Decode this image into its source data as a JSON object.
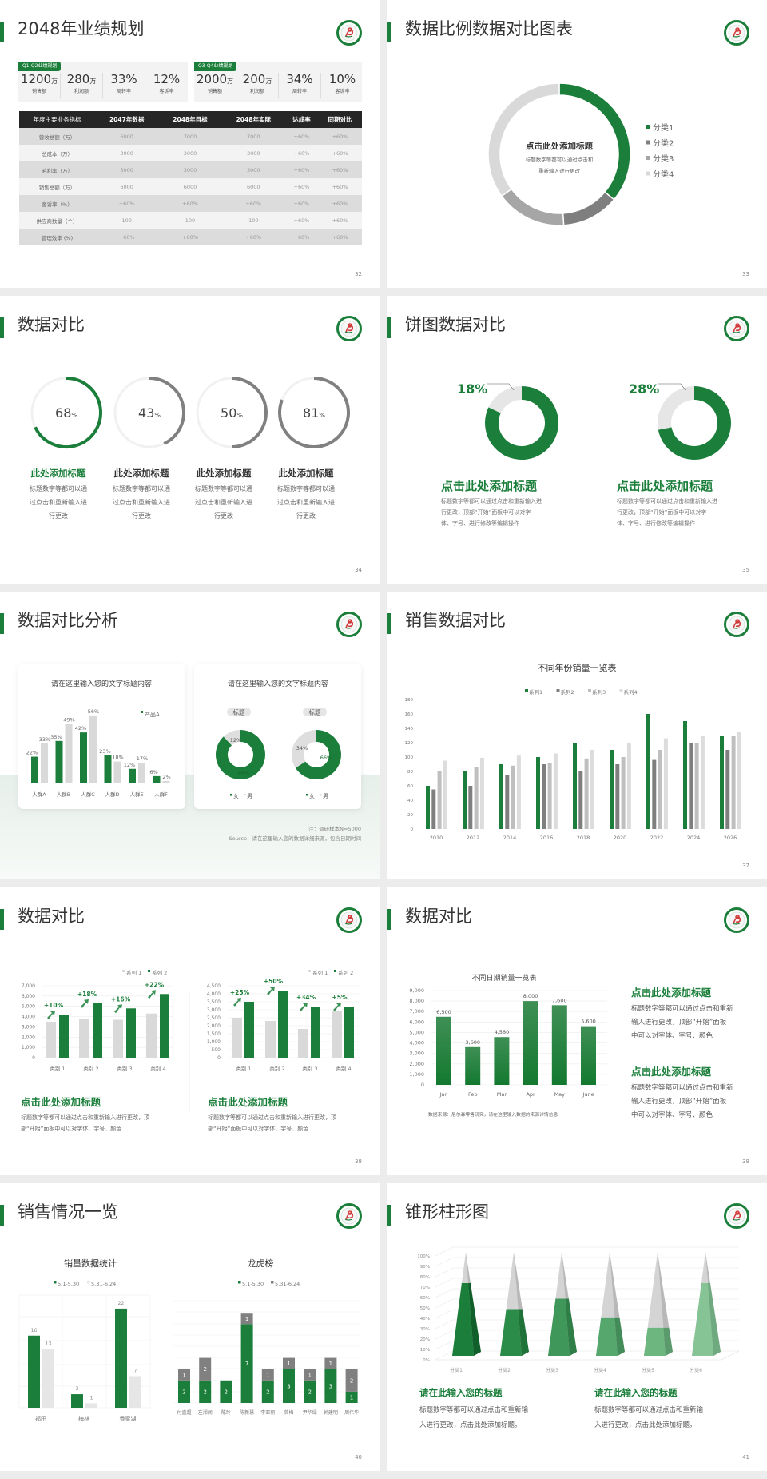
{
  "colors": {
    "green": "#1b7f3b",
    "dark_gray": "#7f7f7f",
    "mid_gray": "#a6a6a6",
    "light_gray": "#d9d9d9",
    "page_bg": "#ececec"
  },
  "logo_icon": "school-emblem-icon",
  "slides": {
    "s32": {
      "title": "2048年业绩规划",
      "page": "32",
      "panels": [
        {
          "badge": "Q1-Q2业绩规划",
          "stats": [
            {
              "value": "1200",
              "unit": "万",
              "label": "销售额"
            },
            {
              "value": "280",
              "unit": "万",
              "label": "利润额"
            },
            {
              "value": "33%",
              "unit": "",
              "label": "周转率"
            },
            {
              "value": "12%",
              "unit": "",
              "label": "客诉率"
            }
          ]
        },
        {
          "badge": "Q3-Q4业绩规划",
          "stats": [
            {
              "value": "2000",
              "unit": "万",
              "label": "销售额"
            },
            {
              "value": "200",
              "unit": "万",
              "label": "利润额"
            },
            {
              "value": "34%",
              "unit": "",
              "label": "周转率"
            },
            {
              "value": "10%",
              "unit": "",
              "label": "客诉率"
            }
          ]
        }
      ],
      "table": {
        "headers": [
          "年度主要业务指标",
          "2047年数据",
          "2048年目标",
          "2048年实际",
          "达成率",
          "同期对比"
        ],
        "rows": [
          [
            "营收总额（万）",
            "6000",
            "7000",
            "7000",
            "+60%",
            "+60%"
          ],
          [
            "总成本（万）",
            "3000",
            "3000",
            "3000",
            "+60%",
            "+60%"
          ],
          [
            "毛利率（万）",
            "3000",
            "3000",
            "3000",
            "+60%",
            "+60%"
          ],
          [
            "销售总额（万）",
            "6000",
            "6000",
            "6000",
            "+60%",
            "+60%"
          ],
          [
            "客诉率（%）",
            "+60%",
            "+60%",
            "+60%",
            "+60%",
            "+60%"
          ],
          [
            "供应商数量（个）",
            "100",
            "100",
            "100",
            "+60%",
            "+60%"
          ],
          [
            "管理效率 (%)",
            "+60%",
            "+60%",
            "+60%",
            "+60%",
            "+60%"
          ]
        ]
      }
    },
    "s33": {
      "title": "数据比例数据对比图表",
      "page": "33",
      "center_title": "点击此处添加标题",
      "center_desc": [
        "标题数字等都可以通过点击和",
        "重新输入进行更改"
      ]
    },
    "s34": {
      "title": "数据对比",
      "page": "34",
      "items": [
        {
          "title": "此处添加标题",
          "desc": [
            "标题数字等都可以通",
            "过点击和重新输入进",
            "行更改"
          ]
        },
        {
          "title": "此处添加标题",
          "desc": [
            "标题数字等都可以通",
            "过点击和重新输入进",
            "行更改"
          ]
        },
        {
          "title": "此处添加标题",
          "desc": [
            "标题数字等都可以通",
            "过点击和重新输入进",
            "行更改"
          ]
        },
        {
          "title": "此处添加标题",
          "desc": [
            "标题数字等都可以通",
            "过点击和重新输入进",
            "行更改"
          ]
        }
      ]
    },
    "s35": {
      "title": "饼图数据对比",
      "page": "35",
      "items": [
        {
          "title": "点击此处添加标题",
          "desc": [
            "标题数字等都可以通过点击和重新输入进",
            "行更改，顶部“开始”面板中可以对字",
            "体、字号、进行修改等编辑操作"
          ]
        },
        {
          "title": "点击此处添加标题",
          "desc": [
            "标题数字等都可以通过点击和重新输入进",
            "行更改，顶部“开始”面板中可以对字",
            "体、字号、进行修改等编辑操作"
          ]
        }
      ]
    },
    "s36": {
      "title": "数据对比分析",
      "page": "36",
      "card_titles": [
        "请在这里输入您的文字标题内容",
        "请在这里输入您的文字标题内容"
      ],
      "note": "注：调研样本N=5000",
      "source": "Source：请在这里输入您的数据详细来源，包含日期时间"
    },
    "s37": {
      "title": "销售数据对比",
      "page": "37"
    },
    "s38": {
      "title": "数据对比",
      "page": "38",
      "items": [
        {
          "title": "点击此处添加标题",
          "desc": [
            "标题数字等都可以通过点击和重新输入进行更改，顶",
            "部“开始”面板中可以对字体、字号、颜色"
          ]
        },
        {
          "title": "点击此处添加标题",
          "desc": [
            "标题数字等都可以通过点击和重新输入进行更改，顶",
            "部“开始”面板中可以对字体、字号、颜色"
          ]
        }
      ]
    },
    "s39": {
      "title": "数据对比",
      "page": "39",
      "source": "数据来源：尼尔森零售研究，请在这里输入数据的来源详情信息",
      "items": [
        {
          "title": "点击此处添加标题",
          "desc": [
            "标题数字等都可以通过点击和重新",
            "输入进行更改，顶部“开始”面板",
            "中可以对字体、字号、颜色"
          ]
        },
        {
          "title": "点击此处添加标题",
          "desc": [
            "标题数字等都可以通过点击和重新",
            "输入进行更改，顶部“开始”面板",
            "中可以对字体、字号、颜色"
          ]
        }
      ]
    },
    "s40": {
      "title": "销售情况一览",
      "page": "40"
    },
    "s41": {
      "title": "锥形柱形图",
      "page": "41",
      "items": [
        {
          "title": "请在此输入您的标题",
          "desc": [
            "标题数字等都可以通过点击和重新输",
            "入进行更改，点击此处添加标题。"
          ]
        },
        {
          "title": "请在此输入您的标题",
          "desc": [
            "标题数字等都可以通过点击和重新输",
            "入进行更改，点击此处添加标题。"
          ]
        }
      ]
    }
  },
  "chart_data": [
    {
      "type": "pie",
      "variant": "donut",
      "categories": [
        "分类1",
        "分类2",
        "分类3",
        "分类4"
      ],
      "values": [
        36,
        13,
        16,
        35
      ],
      "legend": "right"
    },
    {
      "type": "pie",
      "variant": "progress-ring",
      "values": [
        68,
        43,
        50,
        81
      ],
      "unit": "%"
    },
    {
      "type": "pie",
      "variant": "donut",
      "values": [
        18,
        28
      ],
      "labels": [
        "18%",
        "28%"
      ]
    },
    {
      "type": "bar",
      "title": "请在这里输入您的文字标题内容",
      "categories": [
        "人群A",
        "人群B",
        "人群C",
        "人群D",
        "人群E",
        "人群F"
      ],
      "series": [
        {
          "name": "产品A",
          "values": [
            22,
            35,
            42,
            23,
            12,
            6
          ],
          "labels": [
            "22%",
            "35%",
            "42%",
            "23%",
            "12%",
            "6%"
          ]
        },
        {
          "values": [
            33,
            49,
            56,
            18,
            17,
            2
          ],
          "labels": [
            "33%",
            "49%",
            "56%",
            "18%",
            "17%",
            "2%"
          ]
        }
      ],
      "legend": "top-right"
    },
    {
      "type": "pie",
      "variant": "donut",
      "legend": [
        "女",
        "男"
      ],
      "charts": [
        {
          "label": "标题",
          "values": [
            88,
            12
          ],
          "labels": [
            "88%",
            "12%"
          ]
        },
        {
          "label": "标题",
          "values": [
            66,
            34
          ],
          "labels": [
            "66%",
            "34%"
          ]
        }
      ]
    },
    {
      "type": "bar",
      "title": "不同年份销量一览表",
      "categories": [
        "2010",
        "2012",
        "2014",
        "2016",
        "2018",
        "2020",
        "2022",
        "2024",
        "2026"
      ],
      "ylim": [
        0,
        180
      ],
      "yticks": [
        "0",
        "20",
        "40",
        "60",
        "80",
        "100",
        "120",
        "140",
        "160",
        "180"
      ],
      "series": [
        {
          "name": "系列1",
          "values": [
            60,
            80,
            90,
            100,
            120,
            110,
            160,
            150,
            130
          ]
        },
        {
          "name": "系列2",
          "values": [
            55,
            60,
            75,
            90,
            80,
            90,
            96,
            120,
            110
          ]
        },
        {
          "name": "系列3",
          "values": [
            80,
            86,
            88,
            92,
            98,
            100,
            110,
            120,
            130
          ]
        },
        {
          "name": "系列4",
          "values": [
            95,
            99,
            102,
            105,
            110,
            120,
            126,
            130,
            135
          ]
        }
      ],
      "legend": "top"
    },
    {
      "type": "bar",
      "categories": [
        "类别 1",
        "类别 2",
        "类别 3",
        "类别 4"
      ],
      "ylim": [
        0,
        7000
      ],
      "yticks": [
        "0",
        "1,000",
        "2,000",
        "3,000",
        "4,000",
        "5,000",
        "6,000",
        "7,000"
      ],
      "series": [
        {
          "name": "系列 1",
          "values": [
            3500,
            3800,
            3700,
            4300
          ]
        },
        {
          "name": "系列 2",
          "values": [
            4200,
            5300,
            4800,
            6200
          ]
        }
      ],
      "annotations": [
        "+10%",
        "+18%",
        "+16%",
        "+22%"
      ],
      "legend": "top-right"
    },
    {
      "type": "bar",
      "categories": [
        "类别 1",
        "类别 2",
        "类别 3",
        "类别 4"
      ],
      "ylim": [
        0,
        4500
      ],
      "yticks": [
        "0",
        "500",
        "1,000",
        "1,500",
        "2,000",
        "2,500",
        "3,000",
        "3,500",
        "4,000",
        "4,500"
      ],
      "series": [
        {
          "name": "系列 1",
          "values": [
            2500,
            2300,
            1800,
            2900
          ]
        },
        {
          "name": "系列 2",
          "values": [
            3500,
            4200,
            3200,
            3200
          ]
        }
      ],
      "annotations": [
        "+25%",
        "+50%",
        "+34%",
        "+5%"
      ],
      "legend": "top-right"
    },
    {
      "type": "bar",
      "title": "不同日期销量一览表",
      "categories": [
        "Jan",
        "Feb",
        "Mar",
        "Apr",
        "May",
        "June"
      ],
      "values": [
        6500,
        3600,
        4560,
        8000,
        7600,
        5600
      ],
      "labels": [
        "6,500",
        "3,600",
        "4,560",
        "8,000",
        "7,600",
        "5,600"
      ],
      "ylim": [
        0,
        9000
      ],
      "yticks": [
        "0",
        "1,000",
        "2,000",
        "3,000",
        "4,000",
        "5,000",
        "6,000",
        "7,000",
        "8,000",
        "9,000"
      ]
    },
    {
      "type": "bar",
      "title": "销量数据统计",
      "categories": [
        "福田",
        "梅林",
        "香蜜湖"
      ],
      "series": [
        {
          "name": "5.1-5.30",
          "values": [
            16,
            3,
            22
          ]
        },
        {
          "name": "5.31-6.24",
          "values": [
            13,
            1,
            7
          ]
        }
      ],
      "legend": "top"
    },
    {
      "type": "bar",
      "variant": "stacked",
      "title": "龙虎榜",
      "categories": [
        "付直超",
        "左湘闻",
        "陈玲",
        "陈新慧",
        "李亚丽",
        "曾梅",
        "尹华绿",
        "钟建明",
        "周伟华"
      ],
      "series": [
        {
          "name": "5.1-5.30",
          "values": [
            2,
            2,
            2,
            7,
            2,
            3,
            2,
            3,
            1
          ]
        },
        {
          "name": "5.31-6.24",
          "values": [
            1,
            2,
            0,
            1,
            1,
            1,
            1,
            1,
            2
          ]
        }
      ],
      "legend": "top"
    },
    {
      "type": "bar",
      "variant": "pyramid",
      "categories": [
        "分类1",
        "分类2",
        "分类3",
        "分类4",
        "分类5",
        "分类6"
      ],
      "values": [
        70,
        45,
        55,
        37,
        27,
        70
      ],
      "ylim": [
        0,
        100
      ],
      "yticks": [
        "0%",
        "10%",
        "20%",
        "30%",
        "40%",
        "50%",
        "60%",
        "70%",
        "80%",
        "90%",
        "100%"
      ]
    }
  ]
}
